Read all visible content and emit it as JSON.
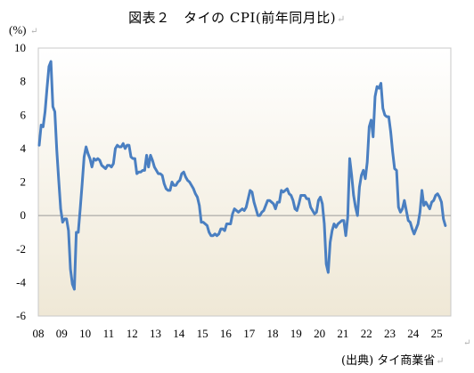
{
  "chart_data": {
    "type": "line",
    "title": "図表２　タイの CPI(前年同月比)",
    "unit_label": "(%)",
    "source": "(出典) タイ商業省",
    "x_tick_labels": [
      "08",
      "09",
      "10",
      "11",
      "12",
      "13",
      "14",
      "15",
      "16",
      "17",
      "18",
      "19",
      "20",
      "21",
      "22",
      "23",
      "24",
      "25"
    ],
    "ylim": [
      -6,
      10
    ],
    "y_ticks": [
      -6,
      -4,
      -2,
      0,
      2,
      4,
      6,
      8,
      10
    ],
    "y_tick_labels": [
      "-6",
      "-4",
      "-2",
      "0",
      "2",
      "4",
      "6",
      "8",
      "10"
    ],
    "grid": false,
    "line_color": "#4a7fc1",
    "series": [
      {
        "values": [
          4.2,
          5.4,
          5.3,
          6.2,
          7.6,
          8.9,
          9.2,
          6.5,
          6.2,
          3.9,
          2.1,
          0.4,
          -0.4,
          -0.2,
          -0.2,
          -0.9,
          -3.2,
          -4.1,
          -4.4,
          -1.0,
          -1.0,
          0.4,
          1.9,
          3.5,
          4.1,
          3.7,
          3.4,
          2.9,
          3.4,
          3.3,
          3.4,
          3.3,
          3.0,
          2.9,
          2.8,
          3.0,
          3.0,
          2.9,
          3.1,
          4.0,
          4.2,
          4.1,
          4.1,
          4.3,
          4.0,
          4.2,
          4.2,
          3.5,
          3.4,
          3.4,
          2.5,
          2.6,
          2.6,
          2.7,
          2.7,
          3.6,
          2.9,
          3.6,
          3.3,
          2.9,
          2.7,
          2.5,
          2.5,
          2.4,
          1.9,
          1.6,
          1.5,
          1.5,
          2.0,
          1.8,
          1.8,
          2.0,
          2.1,
          2.5,
          2.6,
          2.3,
          2.1,
          2.0,
          1.8,
          1.6,
          1.3,
          1.1,
          0.6,
          -0.4,
          -0.4,
          -0.5,
          -0.6,
          -1.0,
          -1.2,
          -1.2,
          -1.1,
          -1.2,
          -1.1,
          -0.8,
          -0.8,
          -0.9,
          -0.5,
          -0.5,
          -0.5,
          0.1,
          0.4,
          0.3,
          0.2,
          0.3,
          0.4,
          0.3,
          0.5,
          1.0,
          1.5,
          1.4,
          0.8,
          0.4,
          0.0,
          0.0,
          0.2,
          0.3,
          0.6,
          0.9,
          0.9,
          0.8,
          0.7,
          0.4,
          0.8,
          0.8,
          1.5,
          1.4,
          1.5,
          1.6,
          1.3,
          1.2,
          0.9,
          0.4,
          0.3,
          0.7,
          1.2,
          1.2,
          1.2,
          1.0,
          1.0,
          0.5,
          0.3,
          0.1,
          0.2,
          0.9,
          1.1,
          0.7,
          -0.5,
          -2.9,
          -3.4,
          -1.6,
          -0.9,
          -0.5,
          -0.7,
          -0.5,
          -0.4,
          -0.3,
          -0.3,
          -1.2,
          -0.1,
          3.4,
          2.4,
          1.2,
          0.5,
          0.0,
          1.7,
          2.4,
          2.7,
          2.2,
          3.2,
          5.3,
          5.7,
          4.7,
          7.1,
          7.7,
          7.6,
          7.9,
          6.4,
          6.0,
          5.9,
          5.9,
          5.0,
          3.8,
          2.8,
          2.7,
          0.5,
          0.2,
          0.4,
          0.9,
          0.3,
          -0.3,
          -0.4,
          -0.8,
          -1.1,
          -0.8,
          -0.5,
          0.2,
          1.5,
          0.6,
          0.8,
          0.6,
          0.4,
          0.8,
          0.9,
          1.2,
          1.3,
          1.1,
          0.8,
          -0.2,
          -0.6
        ]
      }
    ]
  }
}
